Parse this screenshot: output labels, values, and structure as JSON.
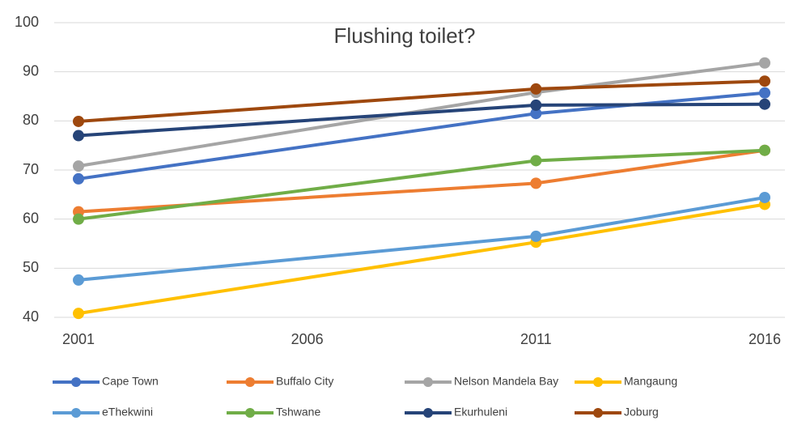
{
  "chart_data": {
    "type": "line",
    "title": "Flushing toilet?",
    "x": [
      2001,
      2011,
      2016
    ],
    "xlim": [
      2001,
      2016
    ],
    "xticks": [
      2001,
      2006,
      2011,
      2016
    ],
    "ylim": [
      40,
      100
    ],
    "yticks": [
      40,
      50,
      60,
      70,
      80,
      90,
      100
    ],
    "grid": true,
    "legend": "bottom",
    "series": [
      {
        "name": "Cape Town",
        "color": "#4472c4",
        "values": [
          68.2,
          81.5,
          85.7
        ]
      },
      {
        "name": "Buffalo City",
        "color": "#ed7d31",
        "values": [
          61.5,
          67.3,
          74
        ]
      },
      {
        "name": "Nelson Mandela Bay",
        "color": "#a5a5a5",
        "values": [
          70.8,
          85.8,
          91.8
        ]
      },
      {
        "name": "Mangaung",
        "color": "#ffc000",
        "values": [
          40.8,
          55.3,
          63
        ]
      },
      {
        "name": "eThekwini",
        "color": "#5b9bd5",
        "values": [
          47.6,
          56.5,
          64.4
        ]
      },
      {
        "name": "Tshwane",
        "color": "#70ad47",
        "values": [
          60,
          71.9,
          74
        ]
      },
      {
        "name": "Ekurhuleni",
        "color": "#264478",
        "values": [
          77,
          83.2,
          83.4
        ]
      },
      {
        "name": "Joburg",
        "color": "#9e480e",
        "values": [
          79.9,
          86.5,
          88.1
        ]
      }
    ]
  }
}
